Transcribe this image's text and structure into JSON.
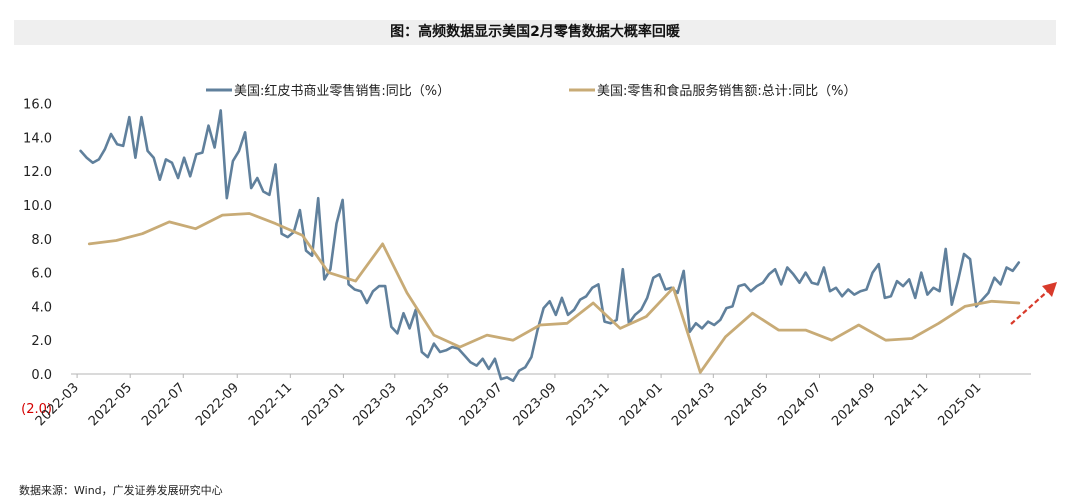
{
  "title": "图：高频数据显示美国2月零售数据大概率回暖",
  "source": "数据来源：Wind，广发证券发展研究中心",
  "colors": {
    "series1": "#60809c",
    "series2": "#c8ab76",
    "arrow": "#d83a2b",
    "negative_label": "#d40000"
  },
  "chart_data": {
    "type": "line",
    "ylim": [
      -2.0,
      16.0
    ],
    "y_ticks": [
      "16.0",
      "14.0",
      "12.0",
      "10.0",
      "8.0",
      "6.0",
      "4.0",
      "2.0",
      "0.0",
      "(2.0)"
    ],
    "x_ticks": [
      "2022-03",
      "2022-05",
      "2022-07",
      "2022-09",
      "2022-11",
      "2023-01",
      "2023-03",
      "2023-05",
      "2023-07",
      "2023-09",
      "2023-11",
      "2024-01",
      "2024-03",
      "2024-05",
      "2024-07",
      "2024-09",
      "2024-11",
      "2025-01"
    ],
    "legend_position": "top",
    "series": [
      {
        "name": "美国:红皮书商业零售销售:同比（%）",
        "color": "#60809c",
        "points": [
          [
            "2022-03-05",
            13.2
          ],
          [
            "2022-03-12",
            12.8
          ],
          [
            "2022-03-19",
            12.5
          ],
          [
            "2022-03-26",
            12.7
          ],
          [
            "2022-04-02",
            13.3
          ],
          [
            "2022-04-09",
            14.2
          ],
          [
            "2022-04-16",
            13.6
          ],
          [
            "2022-04-23",
            13.5
          ],
          [
            "2022-04-30",
            15.2
          ],
          [
            "2022-05-07",
            12.8
          ],
          [
            "2022-05-14",
            15.2
          ],
          [
            "2022-05-21",
            13.2
          ],
          [
            "2022-05-28",
            12.8
          ],
          [
            "2022-06-04",
            11.5
          ],
          [
            "2022-06-11",
            12.7
          ],
          [
            "2022-06-18",
            12.5
          ],
          [
            "2022-06-25",
            11.6
          ],
          [
            "2022-07-02",
            12.8
          ],
          [
            "2022-07-09",
            11.7
          ],
          [
            "2022-07-16",
            13.0
          ],
          [
            "2022-07-23",
            13.1
          ],
          [
            "2022-07-30",
            14.7
          ],
          [
            "2022-08-06",
            13.4
          ],
          [
            "2022-08-13",
            15.6
          ],
          [
            "2022-08-20",
            10.4
          ],
          [
            "2022-08-27",
            12.6
          ],
          [
            "2022-09-03",
            13.2
          ],
          [
            "2022-09-10",
            14.3
          ],
          [
            "2022-09-17",
            11.0
          ],
          [
            "2022-09-24",
            11.6
          ],
          [
            "2022-10-01",
            10.8
          ],
          [
            "2022-10-08",
            10.6
          ],
          [
            "2022-10-15",
            12.4
          ],
          [
            "2022-10-22",
            8.3
          ],
          [
            "2022-10-29",
            8.1
          ],
          [
            "2022-11-05",
            8.4
          ],
          [
            "2022-11-12",
            9.7
          ],
          [
            "2022-11-19",
            7.3
          ],
          [
            "2022-11-26",
            7.0
          ],
          [
            "2022-12-03",
            10.4
          ],
          [
            "2022-12-10",
            5.6
          ],
          [
            "2022-12-17",
            6.2
          ],
          [
            "2022-12-24",
            8.9
          ],
          [
            "2022-12-31",
            10.3
          ],
          [
            "2023-01-07",
            5.3
          ],
          [
            "2023-01-14",
            5.0
          ],
          [
            "2023-01-21",
            4.9
          ],
          [
            "2023-01-28",
            4.2
          ],
          [
            "2023-02-04",
            4.9
          ],
          [
            "2023-02-11",
            5.2
          ],
          [
            "2023-02-18",
            5.2
          ],
          [
            "2023-02-25",
            2.8
          ],
          [
            "2023-03-04",
            2.4
          ],
          [
            "2023-03-11",
            3.6
          ],
          [
            "2023-03-18",
            2.7
          ],
          [
            "2023-03-25",
            3.8
          ],
          [
            "2023-04-01",
            1.3
          ],
          [
            "2023-04-08",
            1.0
          ],
          [
            "2023-04-15",
            1.8
          ],
          [
            "2023-04-22",
            1.3
          ],
          [
            "2023-04-29",
            1.4
          ],
          [
            "2023-05-06",
            1.6
          ],
          [
            "2023-05-13",
            1.5
          ],
          [
            "2023-05-20",
            1.1
          ],
          [
            "2023-05-27",
            0.7
          ],
          [
            "2023-06-03",
            0.5
          ],
          [
            "2023-06-10",
            0.9
          ],
          [
            "2023-06-17",
            0.3
          ],
          [
            "2023-06-24",
            0.9
          ],
          [
            "2023-07-01",
            -0.3
          ],
          [
            "2023-07-08",
            -0.2
          ],
          [
            "2023-07-15",
            -0.4
          ],
          [
            "2023-07-22",
            0.2
          ],
          [
            "2023-07-29",
            0.4
          ],
          [
            "2023-08-05",
            1.0
          ],
          [
            "2023-08-12",
            2.6
          ],
          [
            "2023-08-19",
            3.9
          ],
          [
            "2023-08-26",
            4.3
          ],
          [
            "2023-09-02",
            3.5
          ],
          [
            "2023-09-09",
            4.5
          ],
          [
            "2023-09-16",
            3.5
          ],
          [
            "2023-09-23",
            3.8
          ],
          [
            "2023-09-30",
            4.4
          ],
          [
            "2023-10-07",
            4.6
          ],
          [
            "2023-10-14",
            5.1
          ],
          [
            "2023-10-21",
            5.3
          ],
          [
            "2023-10-28",
            3.1
          ],
          [
            "2023-11-04",
            3.0
          ],
          [
            "2023-11-11",
            3.2
          ],
          [
            "2023-11-18",
            6.2
          ],
          [
            "2023-11-25",
            3.0
          ],
          [
            "2023-12-02",
            3.5
          ],
          [
            "2023-12-09",
            3.8
          ],
          [
            "2023-12-16",
            4.5
          ],
          [
            "2023-12-23",
            5.7
          ],
          [
            "2023-12-30",
            5.9
          ],
          [
            "2024-01-06",
            5.0
          ],
          [
            "2024-01-13",
            5.1
          ],
          [
            "2024-01-20",
            4.8
          ],
          [
            "2024-01-27",
            6.1
          ],
          [
            "2024-02-03",
            2.5
          ],
          [
            "2024-02-10",
            3.0
          ],
          [
            "2024-02-17",
            2.7
          ],
          [
            "2024-02-24",
            3.1
          ],
          [
            "2024-03-02",
            2.9
          ],
          [
            "2024-03-09",
            3.2
          ],
          [
            "2024-03-16",
            3.9
          ],
          [
            "2024-03-23",
            4.0
          ],
          [
            "2024-03-30",
            5.2
          ],
          [
            "2024-04-06",
            5.3
          ],
          [
            "2024-04-13",
            4.9
          ],
          [
            "2024-04-20",
            5.2
          ],
          [
            "2024-04-27",
            5.4
          ],
          [
            "2024-05-04",
            5.9
          ],
          [
            "2024-05-11",
            6.2
          ],
          [
            "2024-05-18",
            5.3
          ],
          [
            "2024-05-25",
            6.3
          ],
          [
            "2024-06-01",
            5.9
          ],
          [
            "2024-06-08",
            5.4
          ],
          [
            "2024-06-15",
            6.0
          ],
          [
            "2024-06-22",
            5.4
          ],
          [
            "2024-06-29",
            5.3
          ],
          [
            "2024-07-06",
            6.3
          ],
          [
            "2024-07-13",
            4.9
          ],
          [
            "2024-07-20",
            5.1
          ],
          [
            "2024-07-27",
            4.6
          ],
          [
            "2024-08-03",
            5.0
          ],
          [
            "2024-08-10",
            4.7
          ],
          [
            "2024-08-17",
            4.9
          ],
          [
            "2024-08-24",
            5.0
          ],
          [
            "2024-08-31",
            6.0
          ],
          [
            "2024-09-07",
            6.5
          ],
          [
            "2024-09-14",
            4.5
          ],
          [
            "2024-09-21",
            4.6
          ],
          [
            "2024-09-28",
            5.5
          ],
          [
            "2024-10-05",
            5.2
          ],
          [
            "2024-10-12",
            5.6
          ],
          [
            "2024-10-19",
            4.5
          ],
          [
            "2024-10-26",
            6.0
          ],
          [
            "2024-11-02",
            4.7
          ],
          [
            "2024-11-09",
            5.1
          ],
          [
            "2024-11-16",
            4.9
          ],
          [
            "2024-11-23",
            7.4
          ],
          [
            "2024-11-30",
            4.1
          ],
          [
            "2024-12-07",
            5.5
          ],
          [
            "2024-12-14",
            7.1
          ],
          [
            "2024-12-21",
            6.8
          ],
          [
            "2024-12-28",
            4.0
          ],
          [
            "2025-01-04",
            4.4
          ],
          [
            "2025-01-11",
            4.8
          ],
          [
            "2025-01-18",
            5.7
          ],
          [
            "2025-01-25",
            5.3
          ],
          [
            "2025-02-01",
            6.3
          ],
          [
            "2025-02-08",
            6.1
          ],
          [
            "2025-02-15",
            6.6
          ]
        ]
      },
      {
        "name": "美国:零售和食品服务销售额:总计:同比（%）",
        "color": "#c8ab76",
        "points": [
          [
            "2022-03-15",
            7.7
          ],
          [
            "2022-04-15",
            7.9
          ],
          [
            "2022-05-15",
            8.3
          ],
          [
            "2022-06-15",
            9.0
          ],
          [
            "2022-07-15",
            8.6
          ],
          [
            "2022-08-15",
            9.4
          ],
          [
            "2022-09-15",
            9.5
          ],
          [
            "2022-10-15",
            8.9
          ],
          [
            "2022-11-15",
            8.2
          ],
          [
            "2022-12-15",
            6.0
          ],
          [
            "2023-01-15",
            5.5
          ],
          [
            "2023-02-15",
            7.7
          ],
          [
            "2023-03-15",
            4.8
          ],
          [
            "2023-04-15",
            2.3
          ],
          [
            "2023-05-15",
            1.6
          ],
          [
            "2023-06-15",
            2.3
          ],
          [
            "2023-07-15",
            2.0
          ],
          [
            "2023-08-15",
            2.9
          ],
          [
            "2023-09-15",
            3.0
          ],
          [
            "2023-10-15",
            4.2
          ],
          [
            "2023-11-15",
            2.7
          ],
          [
            "2023-12-15",
            3.4
          ],
          [
            "2024-01-15",
            5.1
          ],
          [
            "2024-02-15",
            0.1
          ],
          [
            "2024-03-15",
            2.2
          ],
          [
            "2024-04-15",
            3.6
          ],
          [
            "2024-05-15",
            2.6
          ],
          [
            "2024-06-15",
            2.6
          ],
          [
            "2024-07-15",
            2.0
          ],
          [
            "2024-08-15",
            2.9
          ],
          [
            "2024-09-15",
            2.0
          ],
          [
            "2024-10-15",
            2.1
          ],
          [
            "2024-11-15",
            3.0
          ],
          [
            "2024-12-15",
            4.0
          ],
          [
            "2025-01-15",
            4.3
          ],
          [
            "2025-02-15",
            4.2
          ]
        ]
      }
    ]
  }
}
